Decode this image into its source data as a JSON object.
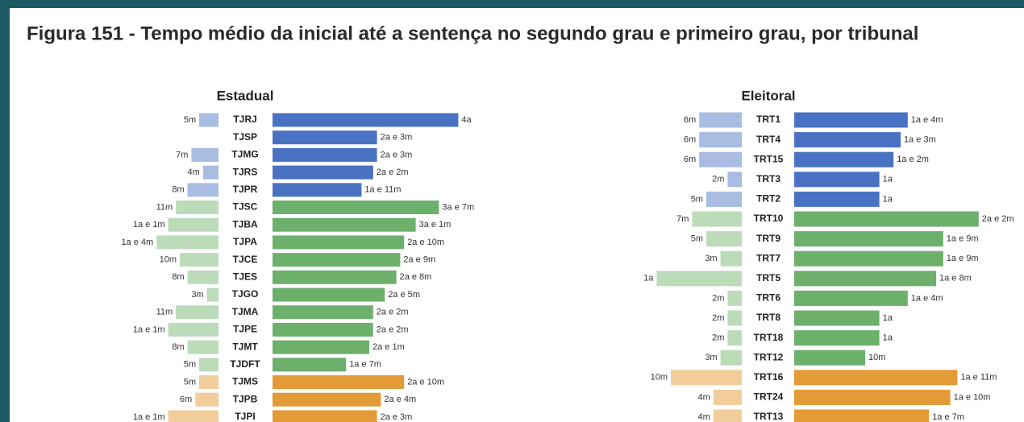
{
  "title": "Figura 151 - Tempo médio da inicial até a sentença no segundo grau e primeiro grau, por tribunal",
  "chart_data": [
    {
      "type": "bar",
      "title": "Estadual",
      "categories": [
        "TJRJ",
        "TJSP",
        "TJMG",
        "TJRS",
        "TJPR",
        "TJSC",
        "TJBA",
        "TJPA",
        "TJCE",
        "TJES",
        "TJGO",
        "TJMA",
        "TJPE",
        "TJMT",
        "TJDFT",
        "TJMS",
        "TJPB",
        "TJPI"
      ],
      "series": [
        {
          "values": [
            5,
            null,
            7,
            4,
            8,
            11,
            13,
            16,
            10,
            8,
            3,
            11,
            13,
            8,
            5,
            5,
            6,
            13
          ],
          "value_labels": [
            "5m",
            null,
            "7m",
            "4m",
            "8m",
            "11m",
            "1a e 1m",
            "1a e 4m",
            "10m",
            "8m",
            "3m",
            "11m",
            "1a e 1m",
            "8m",
            "5m",
            "5m",
            "6m",
            "1a e 1m"
          ],
          "colors": [
            "#a9bce2",
            "#a9bce2",
            "#a9bce2",
            "#a9bce2",
            "#a9bce2",
            "#bcdcb9",
            "#bcdcb9",
            "#bcdcb9",
            "#bcdcb9",
            "#bcdcb9",
            "#bcdcb9",
            "#bcdcb9",
            "#bcdcb9",
            "#bcdcb9",
            "#bcdcb9",
            "#f2cd9c",
            "#f2cd9c",
            "#f2cd9c"
          ]
        },
        {
          "values": [
            48,
            27,
            27,
            26,
            23,
            43,
            37,
            34,
            33,
            32,
            29,
            26,
            26,
            25,
            19,
            34,
            28,
            27
          ],
          "value_labels": [
            "4a",
            "2a e 3m",
            "2a e 3m",
            "2a e 2m",
            "1a e 11m",
            "3a e 7m",
            "3a e 1m",
            "2a e 10m",
            "2a e 9m",
            "2a e 8m",
            "2a e 5m",
            "2a e 2m",
            "2a e 2m",
            "2a e 1m",
            "1a e 7m",
            "2a e 10m",
            "2a e 4m",
            "2a e 3m"
          ],
          "colors": [
            "#4a72c2",
            "#4a72c2",
            "#4a72c2",
            "#4a72c2",
            "#4a72c2",
            "#6cb06c",
            "#6cb06c",
            "#6cb06c",
            "#6cb06c",
            "#6cb06c",
            "#6cb06c",
            "#6cb06c",
            "#6cb06c",
            "#6cb06c",
            "#6cb06c",
            "#e39b38",
            "#e39b38",
            "#e39b38"
          ]
        }
      ]
    },
    {
      "type": "bar",
      "title": "Eleitoral",
      "categories": [
        "TRT1",
        "TRT4",
        "TRT15",
        "TRT3",
        "TRT2",
        "TRT10",
        "TRT9",
        "TRT7",
        "TRT5",
        "TRT6",
        "TRT8",
        "TRT18",
        "TRT12",
        "TRT16",
        "TRT24",
        "TRT13"
      ],
      "series": [
        {
          "values": [
            6,
            6,
            6,
            2,
            5,
            7,
            5,
            3,
            12,
            2,
            2,
            2,
            3,
            10,
            4,
            4
          ],
          "value_labels": [
            "6m",
            "6m",
            "6m",
            "2m",
            "5m",
            "7m",
            "5m",
            "3m",
            "1a",
            "2m",
            "2m",
            "2m",
            "3m",
            "10m",
            "4m",
            "4m"
          ],
          "colors": [
            "#a9bce2",
            "#a9bce2",
            "#a9bce2",
            "#a9bce2",
            "#a9bce2",
            "#bcdcb9",
            "#bcdcb9",
            "#bcdcb9",
            "#bcdcb9",
            "#bcdcb9",
            "#bcdcb9",
            "#bcdcb9",
            "#bcdcb9",
            "#f2cd9c",
            "#f2cd9c",
            "#f2cd9c"
          ]
        },
        {
          "values": [
            16,
            15,
            14,
            12,
            12,
            26,
            21,
            21,
            20,
            16,
            12,
            12,
            10,
            23,
            22,
            19
          ],
          "value_labels": [
            "1a e 4m",
            "1a e 3m",
            "1a e 2m",
            "1a",
            "1a",
            "2a e 2m",
            "1a e 9m",
            "1a e 9m",
            "1a e 8m",
            "1a e 4m",
            "1a",
            "1a",
            "10m",
            "1a e 11m",
            "1a e 10m",
            "1a e 7m"
          ],
          "colors": [
            "#4a72c2",
            "#4a72c2",
            "#4a72c2",
            "#4a72c2",
            "#4a72c2",
            "#6cb06c",
            "#6cb06c",
            "#6cb06c",
            "#6cb06c",
            "#6cb06c",
            "#6cb06c",
            "#6cb06c",
            "#6cb06c",
            "#e39b38",
            "#e39b38",
            "#e39b38"
          ]
        }
      ]
    }
  ]
}
